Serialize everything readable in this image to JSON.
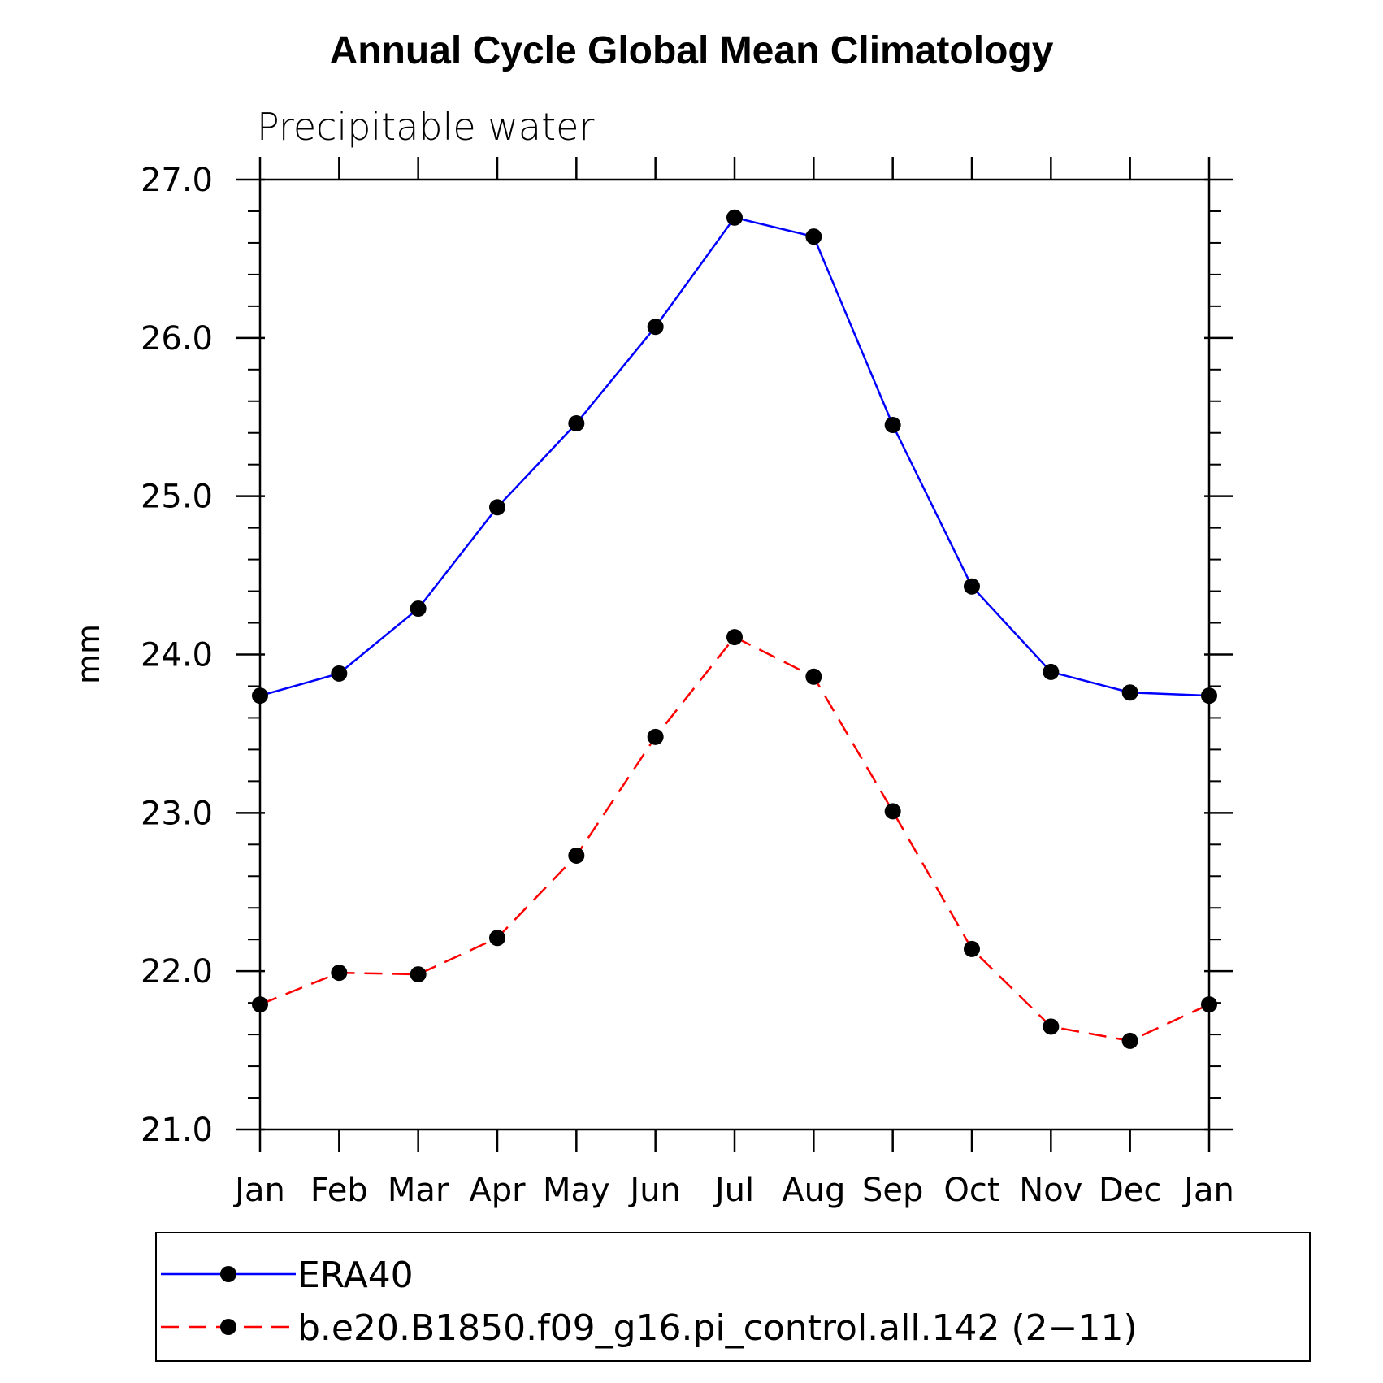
{
  "chart_data": {
    "type": "line",
    "title": "Annual Cycle Global Mean Climatology",
    "subtitle": "Precipitable water",
    "xlabel": "",
    "ylabel": "mm",
    "categories": [
      "Jan",
      "Feb",
      "Mar",
      "Apr",
      "May",
      "Jun",
      "Jul",
      "Aug",
      "Sep",
      "Oct",
      "Nov",
      "Dec",
      "Jan"
    ],
    "ylim": [
      21.0,
      27.0
    ],
    "yticks": [
      "21.0",
      "22.0",
      "23.0",
      "24.0",
      "25.0",
      "26.0",
      "27.0"
    ],
    "y_minor_step": 0.2,
    "grid": false,
    "legend_position": "bottom",
    "series": [
      {
        "name": "ERA40",
        "color": "#0000ff",
        "dash": "solid",
        "marker": "filled-circle",
        "values": [
          23.74,
          23.88,
          24.29,
          24.93,
          25.46,
          26.07,
          26.76,
          26.64,
          25.45,
          24.43,
          23.89,
          23.76,
          23.74
        ]
      },
      {
        "name": "b.e20.B1850.f09_g16.pi_control.all.142 (2−11)",
        "color": "#ff0000",
        "dash": "dashed",
        "marker": "filled-circle",
        "values": [
          21.79,
          21.99,
          21.98,
          22.21,
          22.73,
          23.48,
          24.11,
          23.86,
          23.01,
          22.14,
          21.65,
          21.56,
          21.79
        ]
      }
    ]
  }
}
